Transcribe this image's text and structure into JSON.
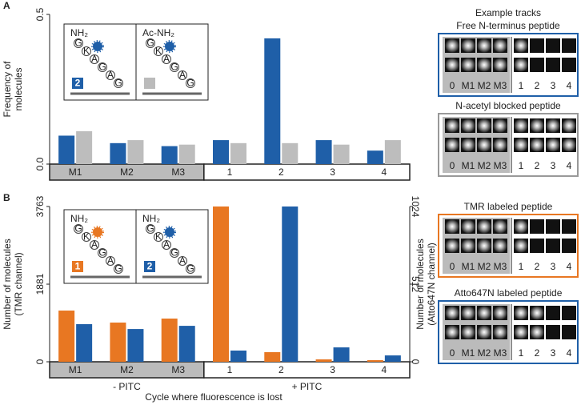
{
  "chart_data": [
    {
      "type": "bar",
      "panel": "A",
      "ylabel": [
        "Frequency of",
        "molecules"
      ],
      "categories": [
        "M1",
        "M2",
        "M3",
        "1",
        "2",
        "3",
        "4"
      ],
      "ylim": [
        0,
        0.5
      ],
      "yticks": [
        {
          "value": 0,
          "label": "0.0"
        },
        0.5
      ],
      "series": [
        {
          "color": "#1f5fa8",
          "values": [
            0.095,
            0.07,
            0.06,
            0.08,
            0.42,
            0.08,
            0.045
          ]
        },
        {
          "color": "#bdbdbd",
          "values": [
            0.11,
            0.08,
            0.065,
            0.07,
            0.07,
            0.065,
            0.08
          ]
        }
      ],
      "inset": {
        "amines": [
          "NH₂",
          "Ac-NH₂"
        ],
        "badges": [
          "2"
        ],
        "sequence": [
          "G",
          "K",
          "A",
          "G",
          "A",
          "G"
        ]
      }
    },
    {
      "type": "bar",
      "panel": "B",
      "ylabel": [
        "Number of molecules",
        "(TMR channel)"
      ],
      "y2label": [
        "Number of molecules",
        "(Atto647N channel)"
      ],
      "categories": [
        "M1",
        "M2",
        "M3",
        "1",
        "2",
        "3",
        "4"
      ],
      "ylim": [
        0,
        3763
      ],
      "yticks": [
        0,
        1881,
        3763
      ],
      "y2lim": [
        0,
        1024
      ],
      "y2ticks": [
        0,
        512,
        1024
      ],
      "series": [
        {
          "color": "#e87722",
          "values": [
            1241,
            950,
            1047,
            3763,
            233,
            58,
            39
          ]
        },
        {
          "color": "#1f5fa8",
          "axis": "y2",
          "values": [
            248,
            216,
            237,
            74,
            1024,
            95,
            42
          ]
        }
      ],
      "groups": [
        "- PITC",
        "+ PITC"
      ],
      "xlabel": "Cycle where fluorescence is lost",
      "inset": {
        "amines": [
          "NH₂",
          "NH₂"
        ],
        "badges": [
          "1",
          "2"
        ],
        "sequence": [
          "G",
          "K",
          "A",
          "G",
          "A",
          "G"
        ]
      }
    }
  ],
  "tracks": {
    "title": "Example tracks",
    "groups": [
      {
        "title": "Free N-terminus peptide",
        "color": "#1f5fa8"
      },
      {
        "title": "N-acetyl blocked peptide",
        "color": "#999999"
      },
      {
        "title": "TMR labeled peptide",
        "color": "#e87722"
      },
      {
        "title": "Atto647N labeled peptide",
        "color": "#1f5fa8"
      }
    ],
    "labels": [
      "0",
      "M1",
      "M2",
      "M3",
      "1",
      "2",
      "3",
      "4"
    ]
  }
}
